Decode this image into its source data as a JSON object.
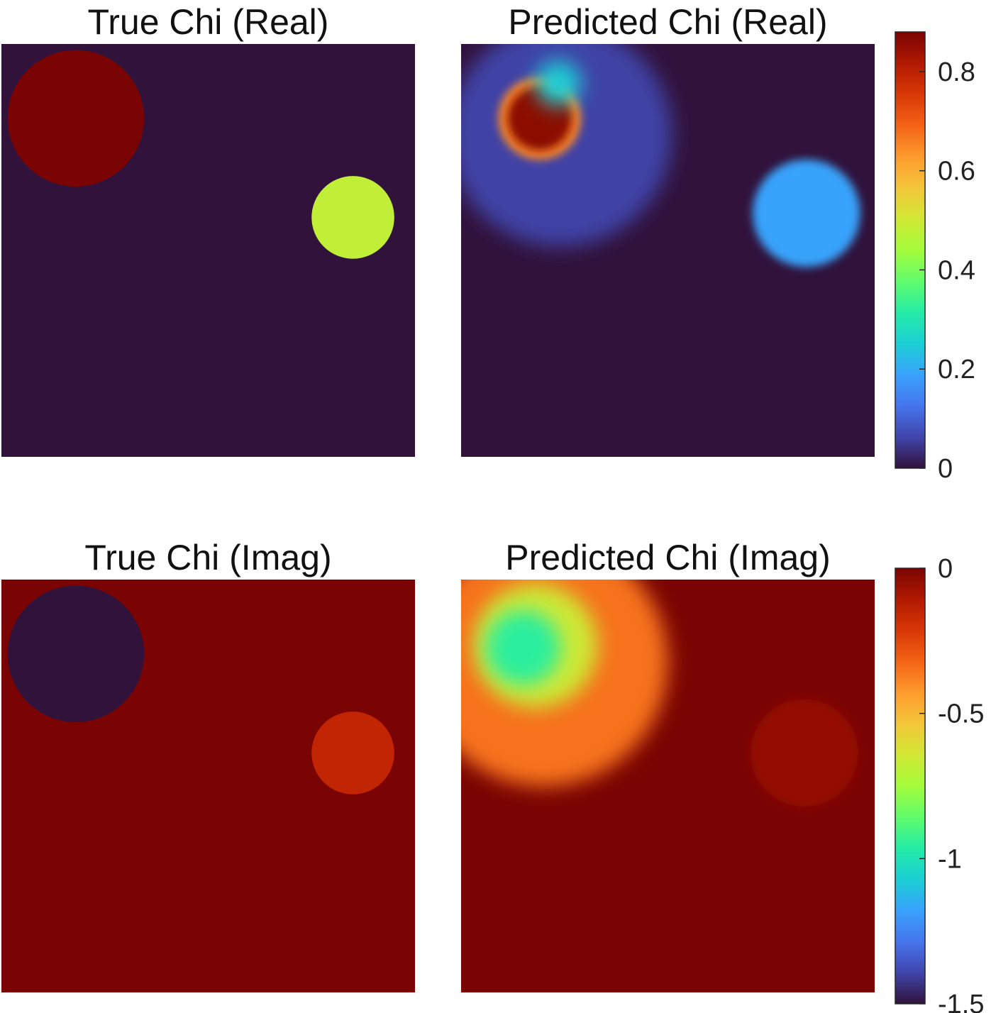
{
  "figure": {
    "panels": [
      {
        "title": "True Chi (Real)"
      },
      {
        "title": "Predicted Chi (Real)"
      },
      {
        "title": "True Chi (Imag)"
      },
      {
        "title": "Predicted Chi (Imag)"
      }
    ],
    "colormap": "turbo",
    "colormap_stops": [
      "#30123b",
      "#4145ab",
      "#4675ed",
      "#39a2fc",
      "#1bcfd4",
      "#24eca6",
      "#61fc6c",
      "#a4fc3b",
      "#d1e834",
      "#f3c63a",
      "#fe9b2d",
      "#f36315",
      "#d93806",
      "#b11901",
      "#7a0403"
    ]
  },
  "chart_data": [
    {
      "type": "heatmap",
      "title": "True Chi (Real)",
      "colorbar": "top",
      "grid": false,
      "xlabel": "",
      "ylabel": "",
      "background_value": 0,
      "objects": [
        {
          "shape": "disk",
          "center": [
            0.18,
            0.18
          ],
          "radius": 0.165,
          "value": 0.88
        },
        {
          "shape": "disk",
          "center": [
            0.85,
            0.42
          ],
          "radius": 0.1,
          "value": 0.48
        }
      ]
    },
    {
      "type": "heatmap",
      "title": "Predicted Chi (Real)",
      "colorbar": "top",
      "grid": false,
      "xlabel": "",
      "ylabel": "",
      "background_value": 0,
      "objects": [
        {
          "shape": "blob",
          "center": [
            0.24,
            0.22
          ],
          "radius": 0.27,
          "value": 0.06
        },
        {
          "shape": "disk",
          "center": [
            0.19,
            0.18
          ],
          "radius": 0.1,
          "value": 0.65
        },
        {
          "shape": "disk",
          "center": [
            0.19,
            0.18
          ],
          "radius": 0.078,
          "value": 0.86
        },
        {
          "shape": "blob",
          "center": [
            0.235,
            0.095
          ],
          "radius": 0.055,
          "value": 0.25
        },
        {
          "shape": "disk",
          "center": [
            0.835,
            0.41
          ],
          "radius": 0.13,
          "value": 0.19
        }
      ]
    },
    {
      "type": "heatmap",
      "title": "True Chi (Imag)",
      "colorbar": "bottom",
      "grid": false,
      "xlabel": "",
      "ylabel": "",
      "background_value": 0,
      "objects": [
        {
          "shape": "disk",
          "center": [
            0.18,
            0.18
          ],
          "radius": 0.165,
          "value": -1.5
        },
        {
          "shape": "disk",
          "center": [
            0.85,
            0.42
          ],
          "radius": 0.1,
          "value": -0.15
        }
      ]
    },
    {
      "type": "heatmap",
      "title": "Predicted Chi (Imag)",
      "colorbar": "bottom",
      "grid": false,
      "xlabel": "",
      "ylabel": "",
      "background_value": 0,
      "objects": [
        {
          "shape": "blob",
          "center": [
            0.2,
            0.2
          ],
          "radius": 0.3,
          "value": -0.35
        },
        {
          "shape": "blob",
          "center": [
            0.18,
            0.16
          ],
          "radius": 0.15,
          "value": -0.65
        },
        {
          "shape": "blob",
          "center": [
            0.15,
            0.165
          ],
          "radius": 0.09,
          "value": -0.95
        },
        {
          "shape": "disk",
          "center": [
            0.83,
            0.42
          ],
          "radius": 0.13,
          "value": -0.05
        }
      ]
    }
  ],
  "colorbars": [
    {
      "name": "top",
      "min": 0,
      "max": 0.88,
      "ticks": [
        0,
        0.2,
        0.4,
        0.6,
        0.8
      ],
      "tick_labels": [
        "0",
        "0.2",
        "0.4",
        "0.6",
        "0.8"
      ]
    },
    {
      "name": "bottom",
      "min": -1.5,
      "max": 0,
      "ticks": [
        -1.5,
        -1,
        -0.5,
        0
      ],
      "tick_labels": [
        "-1.5",
        "-1",
        "-0.5",
        "0"
      ]
    }
  ]
}
